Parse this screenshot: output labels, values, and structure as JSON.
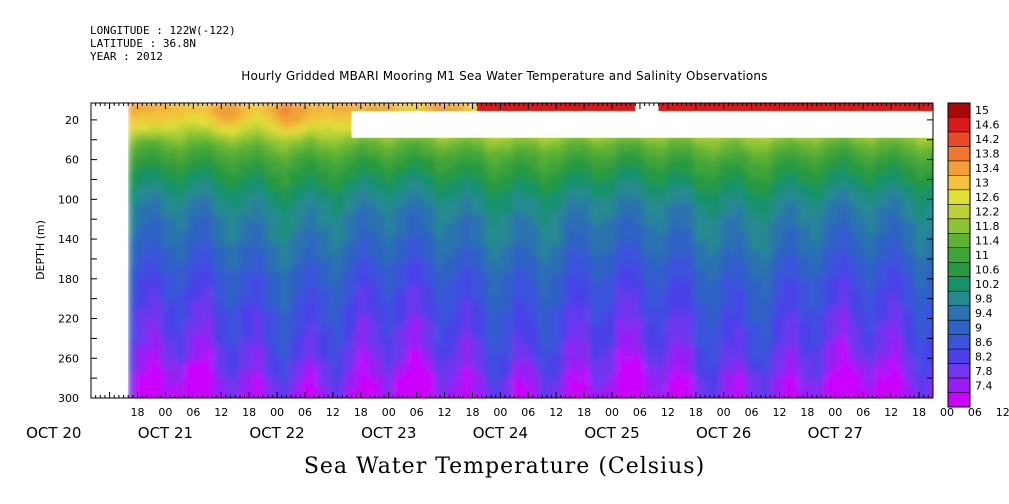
{
  "header": {
    "longitude": "LONGITUDE : 122W(-122)",
    "latitude": "LATITUDE : 36.8N",
    "year": "YEAR : 2012"
  },
  "chart_data": {
    "type": "heatmap",
    "title": "Hourly Gridded MBARI Mooring M1 Sea Water Temperature and Salinity Observations",
    "caption": "Sea Water Temperature (Celsius)",
    "xlabel": "",
    "ylabel": "DEPTH (m)",
    "x_hours": [
      "18",
      "00",
      "06",
      "12",
      "18",
      "00",
      "06",
      "12",
      "18",
      "00",
      "06",
      "12",
      "18",
      "00",
      "06",
      "12",
      "18",
      "00",
      "06",
      "12",
      "18",
      "00",
      "06",
      "12",
      "18",
      "00",
      "06",
      "12",
      "18",
      "00",
      "06",
      "12"
    ],
    "x_days": [
      "OCT 20",
      "OCT 21",
      "OCT 22",
      "OCT 23",
      "OCT 24",
      "OCT 25",
      "OCT 26",
      "OCT 27"
    ],
    "xlim_hours_since_oct20_00": [
      8,
      189
    ],
    "data_start_hours_since_oct20_00": 16,
    "y_ticks": [
      20,
      60,
      100,
      140,
      180,
      220,
      260,
      300
    ],
    "ylim": [
      3,
      300
    ],
    "y_reversed": true,
    "colorbar_labels": [
      "15",
      "14.6",
      "14.2",
      "13.8",
      "13.4",
      "13",
      "12.6",
      "12.2",
      "11.8",
      "11.4",
      "11",
      "10.6",
      "10.2",
      "9.8",
      "9.4",
      "9",
      "8.6",
      "8.2",
      "7.8",
      "7.4"
    ],
    "colorbar_range": [
      7.2,
      15.2
    ],
    "colors": [
      "#cc00ff",
      "#9a1cf5",
      "#7036f0",
      "#4a40e8",
      "#3a52dc",
      "#2d62c4",
      "#2a73ae",
      "#258a90",
      "#16926a",
      "#27993f",
      "#3fa43a",
      "#5fb236",
      "#8cc435",
      "#bad238",
      "#e0e03a",
      "#f2c23a",
      "#f0a034",
      "#f07830",
      "#ea4a28",
      "#d81a1a",
      "#a80808"
    ],
    "depth_profile": [
      {
        "depth": 5,
        "temp": 13.4
      },
      {
        "depth": 20,
        "temp": 13.0
      },
      {
        "depth": 30,
        "temp": 12.4
      },
      {
        "depth": 40,
        "temp": 11.8
      },
      {
        "depth": 60,
        "temp": 11.1
      },
      {
        "depth": 80,
        "temp": 10.6
      },
      {
        "depth": 100,
        "temp": 10.1
      },
      {
        "depth": 120,
        "temp": 9.8
      },
      {
        "depth": 140,
        "temp": 9.6
      },
      {
        "depth": 160,
        "temp": 9.3
      },
      {
        "depth": 180,
        "temp": 9.0
      },
      {
        "depth": 200,
        "temp": 8.8
      },
      {
        "depth": 220,
        "temp": 8.6
      },
      {
        "depth": 240,
        "temp": 8.4
      },
      {
        "depth": 260,
        "temp": 8.2
      },
      {
        "depth": 280,
        "temp": 7.9
      },
      {
        "depth": 300,
        "temp": 7.6
      }
    ],
    "surface_warm_segments": [
      {
        "start_hours": 91,
        "end_hours": 125,
        "temp": 14.6
      },
      {
        "start_hours": 130,
        "end_hours": 189,
        "temp": 14.6
      }
    ],
    "missing_regions": [
      {
        "start_hours": 8,
        "end_hours": 16,
        "depth_min": 3,
        "depth_max": 300
      },
      {
        "start_hours": 64,
        "end_hours": 189,
        "depth_min": 11,
        "depth_max": 38
      },
      {
        "start_hours": 125,
        "end_hours": 130,
        "depth_min": 3,
        "depth_max": 11
      }
    ]
  }
}
